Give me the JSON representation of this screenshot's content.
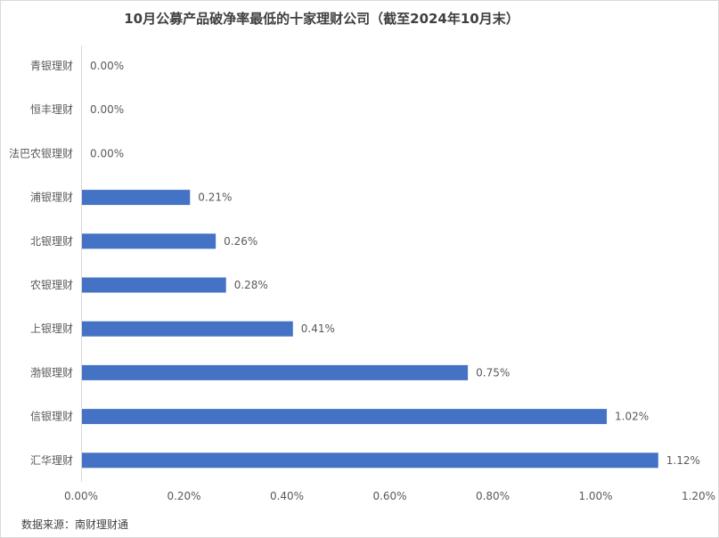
{
  "chart_data": {
    "type": "bar",
    "orientation": "horizontal",
    "title": "10月公募产品破净率最低的十家理财公司（截至2024年10月末）",
    "categories": [
      "青银理财",
      "恒丰理财",
      "法巴农银理财",
      "浦银理财",
      "北银理财",
      "农银理财",
      "上银理财",
      "渤银理财",
      "信银理财",
      "汇华理财"
    ],
    "values": [
      0.0,
      0.0,
      0.0,
      0.21,
      0.26,
      0.28,
      0.41,
      0.75,
      1.02,
      1.12
    ],
    "value_labels": [
      "0.00%",
      "0.00%",
      "0.00%",
      "0.21%",
      "0.26%",
      "0.28%",
      "0.41%",
      "0.75%",
      "1.02%",
      "1.12%"
    ],
    "x_ticks": [
      "0.00%",
      "0.20%",
      "0.40%",
      "0.60%",
      "0.80%",
      "1.00%",
      "1.20%"
    ],
    "xlim": [
      0,
      1.2
    ],
    "xlabel": "",
    "ylabel": "",
    "grid": false,
    "legend": "none",
    "bar_color": "#4472c4"
  },
  "source": "数据来源：南财理财通"
}
